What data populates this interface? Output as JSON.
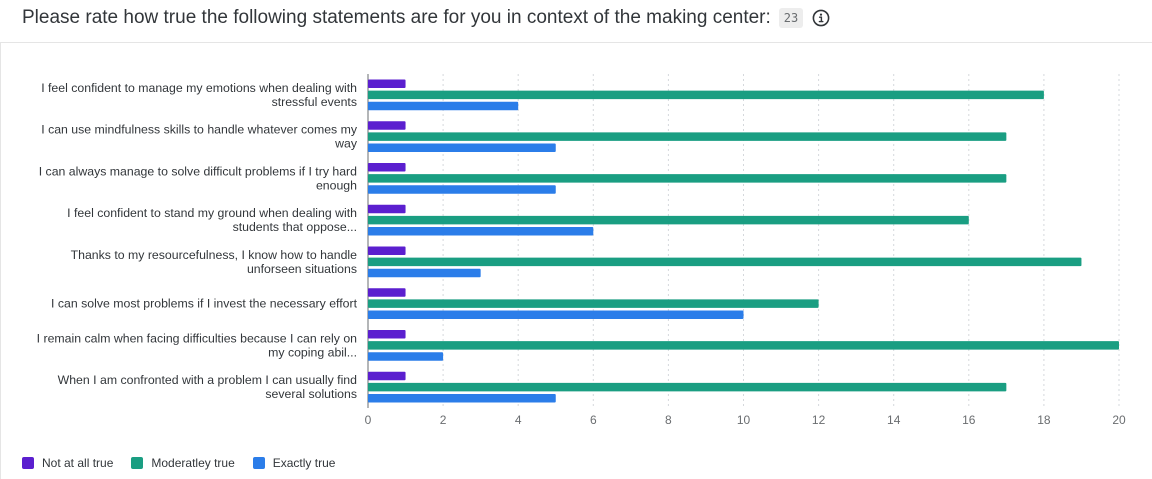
{
  "header": {
    "title": "Please rate how true the following statements are for you in context of the making center:",
    "count_badge": "23",
    "info_icon": "info-icon"
  },
  "legend": [
    {
      "label": "Not at all true",
      "color": "#5b1fcf"
    },
    {
      "label": "Moderatley true",
      "color": "#1a9e82"
    },
    {
      "label": "Exactly true",
      "color": "#2b7de9"
    }
  ],
  "chart_data": {
    "type": "bar",
    "orientation": "horizontal",
    "categories": [
      [
        "I feel confident to manage my emotions when dealing with",
        "stressful events"
      ],
      [
        "I can use mindfulness skills to handle whatever comes my",
        "way"
      ],
      [
        "I can always manage to solve difficult problems if I try hard",
        "enough"
      ],
      [
        "I feel confident to stand my ground when dealing with",
        "students that oppose..."
      ],
      [
        "Thanks to my resourcefulness, I know how to handle",
        "unforseen situations"
      ],
      [
        "I can solve most problems if I invest the necessary effort"
      ],
      [
        "I remain calm when facing difficulties because I can rely on",
        "my coping abil..."
      ],
      [
        "When I am confronted with a problem I can usually find",
        "several solutions"
      ]
    ],
    "series": [
      {
        "name": "Not at all true",
        "color": "#5b1fcf",
        "values": [
          1,
          1,
          1,
          1,
          1,
          1,
          1,
          1
        ]
      },
      {
        "name": "Moderatley true",
        "color": "#1a9e82",
        "values": [
          18,
          17,
          17,
          16,
          19,
          12,
          20,
          17
        ]
      },
      {
        "name": "Exactly true",
        "color": "#2b7de9",
        "values": [
          4,
          5,
          5,
          6,
          3,
          10,
          2,
          5
        ]
      }
    ],
    "xlim": [
      0,
      20
    ],
    "xticks": [
      0,
      2,
      4,
      6,
      8,
      10,
      12,
      14,
      16,
      18,
      20
    ],
    "grid": true,
    "legend_position": "bottom-left"
  }
}
